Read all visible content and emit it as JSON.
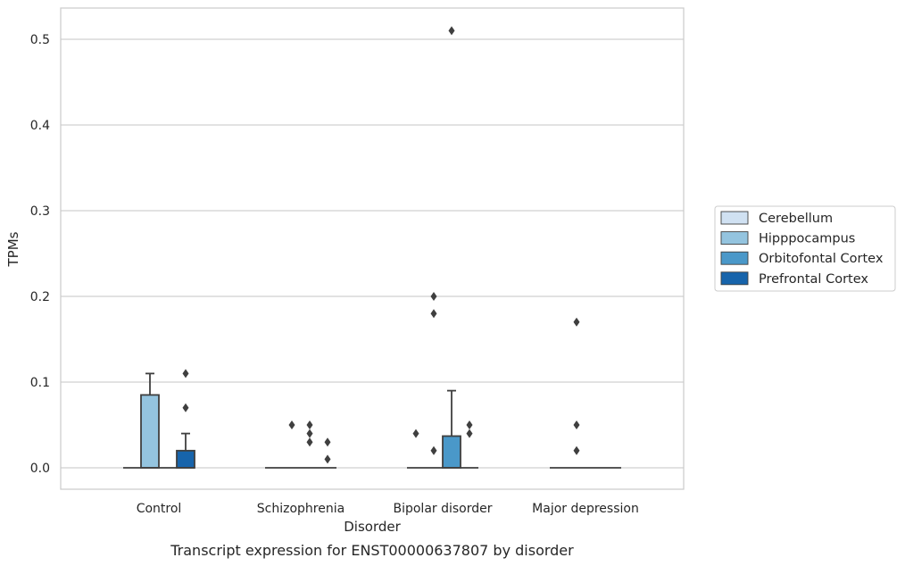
{
  "chart_data": {
    "type": "box",
    "title": "",
    "caption": "Transcript expression for ENST00000637807 by disorder",
    "xlabel": "Disorder",
    "ylabel": "TPMs",
    "ylim": [
      -0.025,
      0.535
    ],
    "yticks": [
      0.0,
      0.1,
      0.2,
      0.3,
      0.4,
      0.5
    ],
    "ytick_labels": [
      "0.0",
      "0.1",
      "0.2",
      "0.3",
      "0.4",
      "0.5"
    ],
    "grid": "horizontal",
    "legend_placement": "right",
    "categories": [
      "Control",
      "Schizophrenia",
      "Bipolar disorder",
      "Major depression"
    ],
    "series": [
      {
        "name": "Cerebellum",
        "color": "#d0e1f2",
        "boxes": [
          {
            "q1": 0,
            "median": 0,
            "q3": 0,
            "whisker_low": 0,
            "whisker_high": 0,
            "outliers": []
          },
          {
            "q1": 0,
            "median": 0,
            "q3": 0,
            "whisker_low": 0,
            "whisker_high": 0,
            "outliers": []
          },
          {
            "q1": 0,
            "median": 0,
            "q3": 0,
            "whisker_low": 0,
            "whisker_high": 0,
            "outliers": [
              0.04
            ]
          },
          {
            "q1": 0,
            "median": 0,
            "q3": 0,
            "whisker_low": 0,
            "whisker_high": 0,
            "outliers": []
          }
        ]
      },
      {
        "name": "Hipppocampus",
        "color": "#94c4df",
        "boxes": [
          {
            "q1": 0,
            "median": 0,
            "q3": 0.085,
            "whisker_low": 0,
            "whisker_high": 0.11,
            "outliers": []
          },
          {
            "q1": 0,
            "median": 0,
            "q3": 0,
            "whisker_low": 0,
            "whisker_high": 0,
            "outliers": [
              0.05
            ]
          },
          {
            "q1": 0,
            "median": 0,
            "q3": 0,
            "whisker_low": 0,
            "whisker_high": 0,
            "outliers": [
              0.02,
              0.18,
              0.2
            ]
          },
          {
            "q1": 0,
            "median": 0,
            "q3": 0,
            "whisker_low": 0,
            "whisker_high": 0,
            "outliers": [
              0.02,
              0.05,
              0.17
            ]
          }
        ]
      },
      {
        "name": "Orbitofontal Cortex",
        "color": "#4a98c9",
        "boxes": [
          {
            "q1": 0,
            "median": 0,
            "q3": 0,
            "whisker_low": 0,
            "whisker_high": 0,
            "outliers": []
          },
          {
            "q1": 0,
            "median": 0,
            "q3": 0,
            "whisker_low": 0,
            "whisker_high": 0,
            "outliers": [
              0.03,
              0.04,
              0.05
            ]
          },
          {
            "q1": 0,
            "median": 0,
            "q3": 0.037,
            "whisker_low": 0,
            "whisker_high": 0.09,
            "outliers": [
              0.51
            ]
          },
          {
            "q1": 0,
            "median": 0,
            "q3": 0,
            "whisker_low": 0,
            "whisker_high": 0,
            "outliers": []
          }
        ]
      },
      {
        "name": "Prefrontal Cortex",
        "color": "#1764ab",
        "boxes": [
          {
            "q1": 0,
            "median": 0,
            "q3": 0.02,
            "whisker_low": 0,
            "whisker_high": 0.04,
            "outliers": [
              0.07,
              0.11
            ]
          },
          {
            "q1": 0,
            "median": 0,
            "q3": 0,
            "whisker_low": 0,
            "whisker_high": 0,
            "outliers": [
              0.01,
              0.03
            ]
          },
          {
            "q1": 0,
            "median": 0,
            "q3": 0,
            "whisker_low": 0,
            "whisker_high": 0,
            "outliers": [
              0.04,
              0.05
            ]
          },
          {
            "q1": 0,
            "median": 0,
            "q3": 0,
            "whisker_low": 0,
            "whisker_high": 0,
            "outliers": []
          }
        ]
      }
    ]
  }
}
